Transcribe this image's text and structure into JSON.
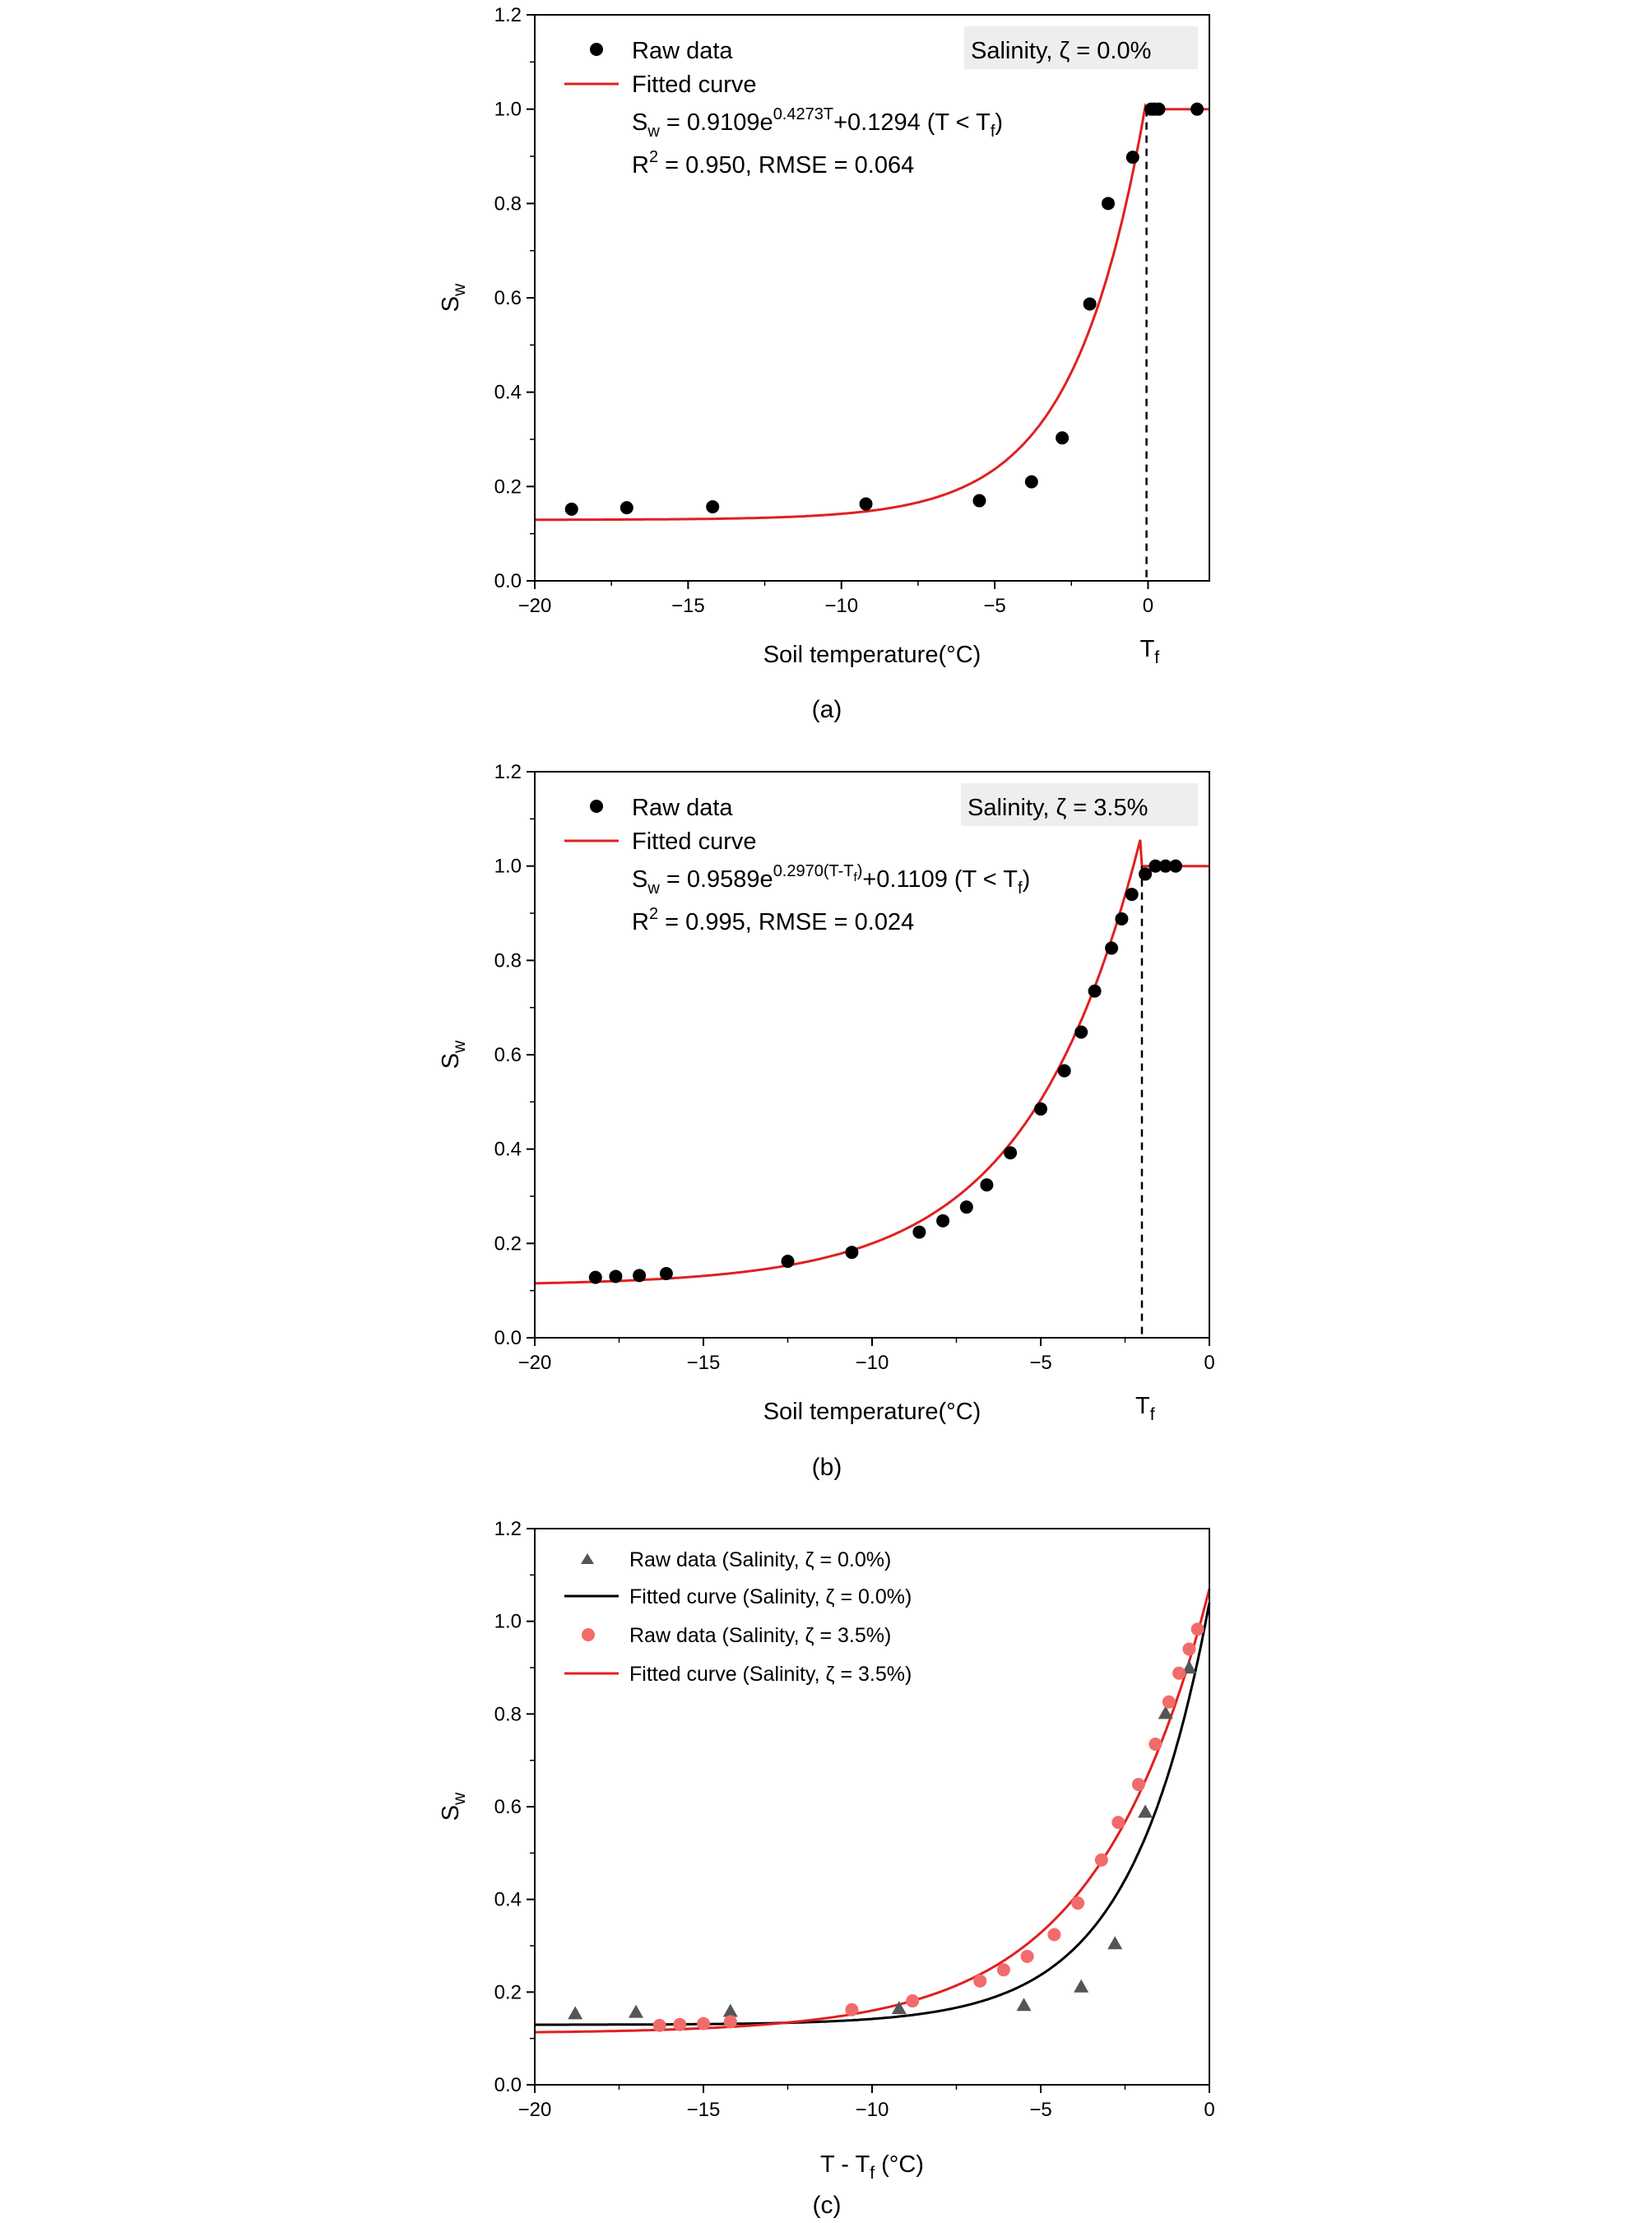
{
  "chart_data": [
    {
      "type": "scatter",
      "panel_label": "(a)",
      "xlabel": "Soil temperature(°C)",
      "ylabel": {
        "main": "S",
        "sub": "w"
      },
      "xlim": [
        -20,
        2
      ],
      "ylim": [
        0.0,
        1.2
      ],
      "xticks": [
        -20,
        -15,
        -10,
        -5,
        0
      ],
      "xtick_labels": [
        "−20",
        "−15",
        "−10",
        "−5",
        "0"
      ],
      "yticks": [
        0.0,
        0.2,
        0.4,
        0.6,
        0.8,
        1.0,
        1.2
      ],
      "ytick_labels": [
        "0.0",
        "0.2",
        "0.4",
        "0.6",
        "0.8",
        "1.0",
        "1.2"
      ],
      "tf_marker": {
        "x": -0.05,
        "label_main": "T",
        "label_sub": "f",
        "color": "#000000"
      },
      "salinity_box": {
        "text": "Salinity, ζ = 0.0%",
        "bg": "#eeeeee"
      },
      "legend": [
        {
          "label": "Raw data",
          "kind": "dot",
          "color": "#000000"
        },
        {
          "label": "Fitted curve",
          "kind": "line",
          "color": "#e02020"
        }
      ],
      "equation": {
        "p1": "S",
        "p2": "w",
        "p3": " = 0.9109e",
        "p4": "0.4273T",
        "p5": "+0.1294 (T < T",
        "p6": "f",
        "p7": ")"
      },
      "stats": {
        "p1": "R",
        "p2": "2",
        "p3": " = 0.950, RMSE = 0.064"
      },
      "series": [
        {
          "name": "Raw data",
          "kind": "scatter",
          "marker": "circle",
          "color": "#000000",
          "x": [
            -18.8,
            -17.0,
            -14.2,
            -9.2,
            -5.5,
            -3.8,
            -2.8,
            -1.9,
            -1.3,
            -0.5,
            0.1,
            0.2,
            0.35,
            1.6
          ],
          "y": [
            0.152,
            0.155,
            0.157,
            0.163,
            0.17,
            0.21,
            0.303,
            0.587,
            0.8,
            0.898,
            1.0,
            1.0,
            1.0,
            1.0
          ]
        },
        {
          "name": "Fitted curve",
          "kind": "fit",
          "color": "#e02020",
          "a": 0.9109,
          "b": 0.4273,
          "c": 0.1294,
          "tf": -0.05,
          "shift": 0.0,
          "range": [
            -20,
            2
          ]
        }
      ]
    },
    {
      "type": "scatter",
      "panel_label": "(b)",
      "xlabel": "Soil temperature(°C)",
      "ylabel": {
        "main": "S",
        "sub": "w"
      },
      "xlim": [
        -20,
        0
      ],
      "ylim": [
        0.0,
        1.2
      ],
      "xticks": [
        -20,
        -15,
        -10,
        -5,
        0
      ],
      "xtick_labels": [
        "−20",
        "−15",
        "−10",
        "−5",
        "0"
      ],
      "yticks": [
        0.0,
        0.2,
        0.4,
        0.6,
        0.8,
        1.0,
        1.2
      ],
      "ytick_labels": [
        "0.0",
        "0.2",
        "0.4",
        "0.6",
        "0.8",
        "1.0",
        "1.2"
      ],
      "tf_marker": {
        "x": -2.0,
        "label_main": "T",
        "label_sub": "f",
        "color": "#000000"
      },
      "salinity_box": {
        "text": "Salinity, ζ = 3.5%",
        "bg": "#eeeeee"
      },
      "legend": [
        {
          "label": "Raw data",
          "kind": "dot",
          "color": "#000000"
        },
        {
          "label": "Fitted curve",
          "kind": "line",
          "color": "#e02020"
        }
      ],
      "equation": {
        "p1": "S",
        "p2": "w",
        "p3": " = 0.9589e",
        "p4": "0.2970(T-T",
        "p4b": "f",
        "p4c": ")",
        "p5": "+0.1109 (T < T",
        "p6": "f",
        "p7": ")"
      },
      "stats": {
        "p1": "R",
        "p2": "2",
        "p3": " = 0.995, RMSE = 0.024"
      },
      "series": [
        {
          "name": "Raw data",
          "kind": "scatter",
          "marker": "circle",
          "color": "#000000",
          "x": [
            -18.2,
            -17.6,
            -16.9,
            -16.1,
            -12.5,
            -10.6,
            -8.6,
            -7.9,
            -7.2,
            -6.6,
            -5.9,
            -5.0,
            -4.3,
            -3.8,
            -3.4,
            -2.9,
            -2.6,
            -2.3,
            -1.9,
            -1.6,
            -1.3,
            -1.0
          ],
          "y": [
            0.128,
            0.13,
            0.132,
            0.136,
            0.162,
            0.181,
            0.224,
            0.248,
            0.277,
            0.324,
            0.392,
            0.485,
            0.566,
            0.648,
            0.735,
            0.826,
            0.888,
            0.94,
            0.983,
            1.0,
            1.0,
            1.0
          ]
        },
        {
          "name": "Fitted curve",
          "kind": "fit",
          "color": "#e02020",
          "a": 0.9589,
          "b": 0.297,
          "c": 0.1109,
          "tf": -2.0,
          "shift": -2.0,
          "range": [
            -20,
            0
          ]
        }
      ]
    },
    {
      "type": "scatter",
      "panel_label": "(c)",
      "xlabel": {
        "p1": "T - T",
        "p2": "f",
        "p3": " (°C)"
      },
      "ylabel": {
        "main": "S",
        "sub": "w"
      },
      "xlim": [
        -20,
        0
      ],
      "ylim": [
        0.0,
        1.2
      ],
      "xticks": [
        -20,
        -15,
        -10,
        -5,
        0
      ],
      "xtick_labels": [
        "−20",
        "−15",
        "−10",
        "−5",
        "0"
      ],
      "yticks": [
        0.0,
        0.2,
        0.4,
        0.6,
        0.8,
        1.0,
        1.2
      ],
      "ytick_labels": [
        "0.0",
        "0.2",
        "0.4",
        "0.6",
        "0.8",
        "1.0",
        "1.2"
      ],
      "legend": [
        {
          "label": "Raw data (Salinity, ζ = 0.0%)",
          "kind": "triangle",
          "color": "#555555"
        },
        {
          "label": "Fitted curve (Salinity, ζ =  0.0%)",
          "kind": "line",
          "color": "#000000"
        },
        {
          "label": "Raw data (Salinity, ζ = 3.5%)",
          "kind": "dot",
          "color": "#f26b6b"
        },
        {
          "label": "Fitted curve (Salinity, ζ = 3.5%)",
          "kind": "line",
          "color": "#e02020"
        }
      ],
      "series": [
        {
          "name": "Raw data (Salinity, ζ = 0.0%)",
          "kind": "scatter",
          "marker": "triangle",
          "color": "#555555",
          "x": [
            -18.8,
            -17.0,
            -14.2,
            -9.2,
            -5.5,
            -3.8,
            -2.8,
            -1.9,
            -1.3,
            -0.6
          ],
          "y": [
            0.152,
            0.155,
            0.157,
            0.163,
            0.17,
            0.21,
            0.303,
            0.587,
            0.8,
            0.898
          ]
        },
        {
          "name": "Fitted curve (Salinity, ζ =  0.0%)",
          "kind": "fit",
          "color": "#000000",
          "a": 0.9109,
          "b": 0.4273,
          "c": 0.1294,
          "tf": null,
          "shift": 0.0,
          "range": [
            -20,
            0
          ]
        },
        {
          "name": "Raw data (Salinity, ζ = 3.5%)",
          "kind": "scatter",
          "marker": "circle",
          "color": "#f26b6b",
          "x": [
            -16.3,
            -15.7,
            -15.0,
            -14.2,
            -10.6,
            -8.8,
            -6.8,
            -6.1,
            -5.4,
            -4.6,
            -3.9,
            -3.2,
            -2.7,
            -2.1,
            -1.6,
            -1.2,
            -0.9,
            -0.6,
            -0.35
          ],
          "y": [
            0.128,
            0.13,
            0.132,
            0.136,
            0.162,
            0.181,
            0.224,
            0.248,
            0.277,
            0.324,
            0.392,
            0.485,
            0.566,
            0.648,
            0.735,
            0.826,
            0.888,
            0.94,
            0.983
          ]
        },
        {
          "name": "Fitted curve (Salinity, ζ = 3.5%)",
          "kind": "fit",
          "color": "#e02020",
          "a": 0.9589,
          "b": 0.297,
          "c": 0.1109,
          "tf": null,
          "shift": 0.0,
          "range": [
            -20,
            0
          ]
        }
      ]
    }
  ]
}
